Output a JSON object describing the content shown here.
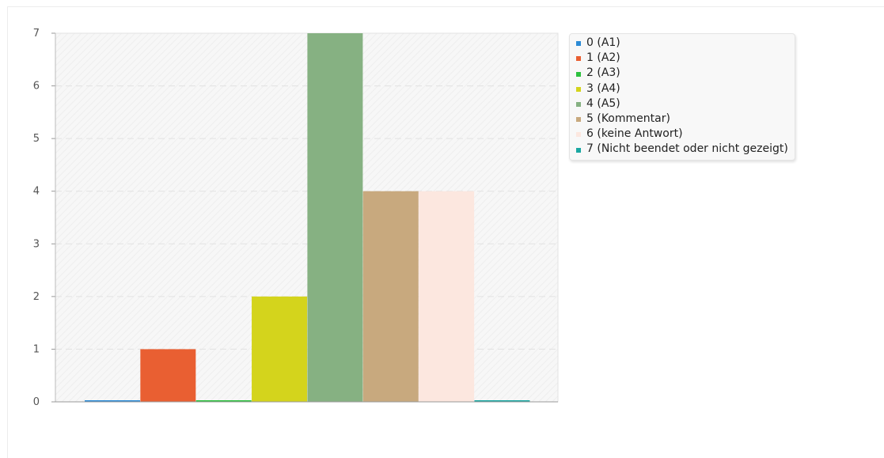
{
  "chart_data": {
    "type": "bar",
    "title": "",
    "xlabel": "",
    "ylabel": "",
    "ylim": [
      0,
      7
    ],
    "yticks": [
      0,
      1,
      2,
      3,
      4,
      5,
      6,
      7
    ],
    "grid": true,
    "legend_position": "right",
    "series": [
      {
        "name": "0 (A1)",
        "value": 0,
        "color": "#2c8bd6"
      },
      {
        "name": "1 (A2)",
        "value": 1,
        "color": "#e95f32"
      },
      {
        "name": "2 (A3)",
        "value": 0,
        "color": "#2dc13f"
      },
      {
        "name": "3 (A4)",
        "value": 2,
        "color": "#d4d41c"
      },
      {
        "name": "4 (A5)",
        "value": 7,
        "color": "#86b182"
      },
      {
        "name": "5 (Kommentar)",
        "value": 4,
        "color": "#c8a97e"
      },
      {
        "name": "6 (keine Antwort)",
        "value": 4,
        "color": "#fce7df"
      },
      {
        "name": "7 (Nicht beendet oder nicht gezeigt)",
        "value": 0,
        "color": "#1aa7a2"
      }
    ]
  }
}
